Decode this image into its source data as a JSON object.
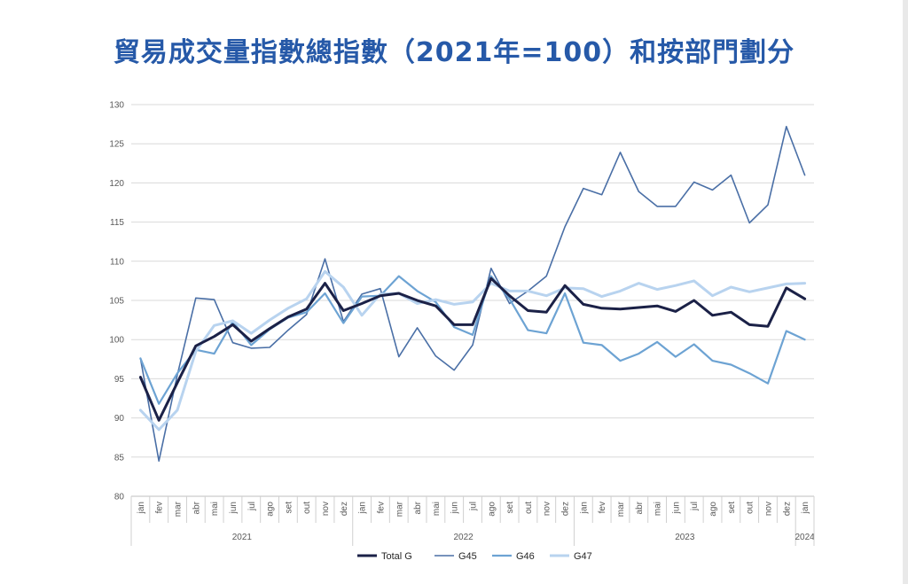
{
  "title": "貿易成交量指數總指數（2021年=100）和按部門劃分",
  "chart_data": {
    "type": "line",
    "title": "貿易成交量指數總指數（2021年=100）和按部門劃分",
    "ylim": [
      80,
      130
    ],
    "yticks": [
      "80",
      "85",
      "90",
      "95",
      "100",
      "105",
      "110",
      "115",
      "120",
      "125",
      "130"
    ],
    "categories": [
      "jan",
      "fev",
      "mar",
      "abr",
      "mai",
      "jun",
      "jul",
      "ago",
      "set",
      "out",
      "nov",
      "dez",
      "jan",
      "fev",
      "mar",
      "abr",
      "mai",
      "jun",
      "jul",
      "ago",
      "set",
      "out",
      "nov",
      "dez",
      "jan",
      "fev",
      "mar",
      "abr",
      "mai",
      "jun",
      "jul",
      "ago",
      "set",
      "out",
      "nov",
      "dez",
      "jan"
    ],
    "years": [
      {
        "label": "2021",
        "count": 12
      },
      {
        "label": "2022",
        "count": 12
      },
      {
        "label": "2023",
        "count": 12
      },
      {
        "label": "2024",
        "count": 1
      }
    ],
    "grid": true,
    "legend_position": "bottom",
    "series": [
      {
        "name": "Total G",
        "color": "#1b2147",
        "values": [
          95.2,
          89.7,
          94.5,
          99.2,
          100.4,
          101.9,
          99.8,
          101.4,
          102.9,
          103.9,
          107.2,
          103.7,
          104.6,
          105.6,
          105.9,
          105.0,
          104.3,
          101.9,
          101.9,
          107.8,
          105.6,
          103.7,
          103.5,
          106.9,
          104.5,
          104.0,
          103.9,
          104.1,
          104.3,
          103.6,
          105.0,
          103.1,
          103.5,
          101.9,
          101.7,
          106.6,
          105.2
        ]
      },
      {
        "name": "G45",
        "color": "#4a6fa6",
        "values": [
          97.6,
          84.5,
          95.5,
          105.3,
          105.1,
          99.6,
          98.9,
          99.0,
          101.2,
          103.2,
          110.3,
          102.3,
          105.8,
          106.5,
          97.8,
          101.5,
          97.9,
          96.1,
          99.3,
          109.1,
          104.6,
          106.2,
          108.1,
          114.4,
          119.3,
          118.5,
          123.9,
          118.9,
          117.0,
          117.0,
          120.1,
          119.1,
          121.0,
          114.9,
          117.2,
          127.2,
          121.0
        ]
      },
      {
        "name": "G46",
        "color": "#6da3d3",
        "values": [
          97.6,
          91.8,
          95.7,
          98.7,
          98.2,
          102.3,
          99.3,
          101.3,
          102.8,
          103.5,
          105.9,
          102.1,
          105.5,
          105.6,
          108.1,
          106.2,
          104.8,
          101.6,
          100.6,
          108.1,
          105.2,
          101.2,
          100.8,
          105.9,
          99.6,
          99.3,
          97.3,
          98.2,
          99.7,
          97.8,
          99.4,
          97.3,
          96.8,
          95.7,
          94.4,
          101.1,
          100.0
        ]
      },
      {
        "name": "G47",
        "color": "#b8d3ef",
        "values": [
          91.0,
          88.5,
          91.0,
          98.5,
          101.8,
          102.4,
          100.8,
          102.5,
          104.0,
          105.2,
          108.7,
          106.7,
          103.1,
          105.8,
          105.9,
          104.6,
          105.1,
          104.5,
          104.8,
          107.2,
          106.2,
          106.2,
          105.6,
          106.6,
          106.5,
          105.5,
          106.2,
          107.2,
          106.4,
          106.9,
          107.5,
          105.6,
          106.7,
          106.1,
          106.6,
          107.1,
          107.2
        ]
      }
    ]
  }
}
